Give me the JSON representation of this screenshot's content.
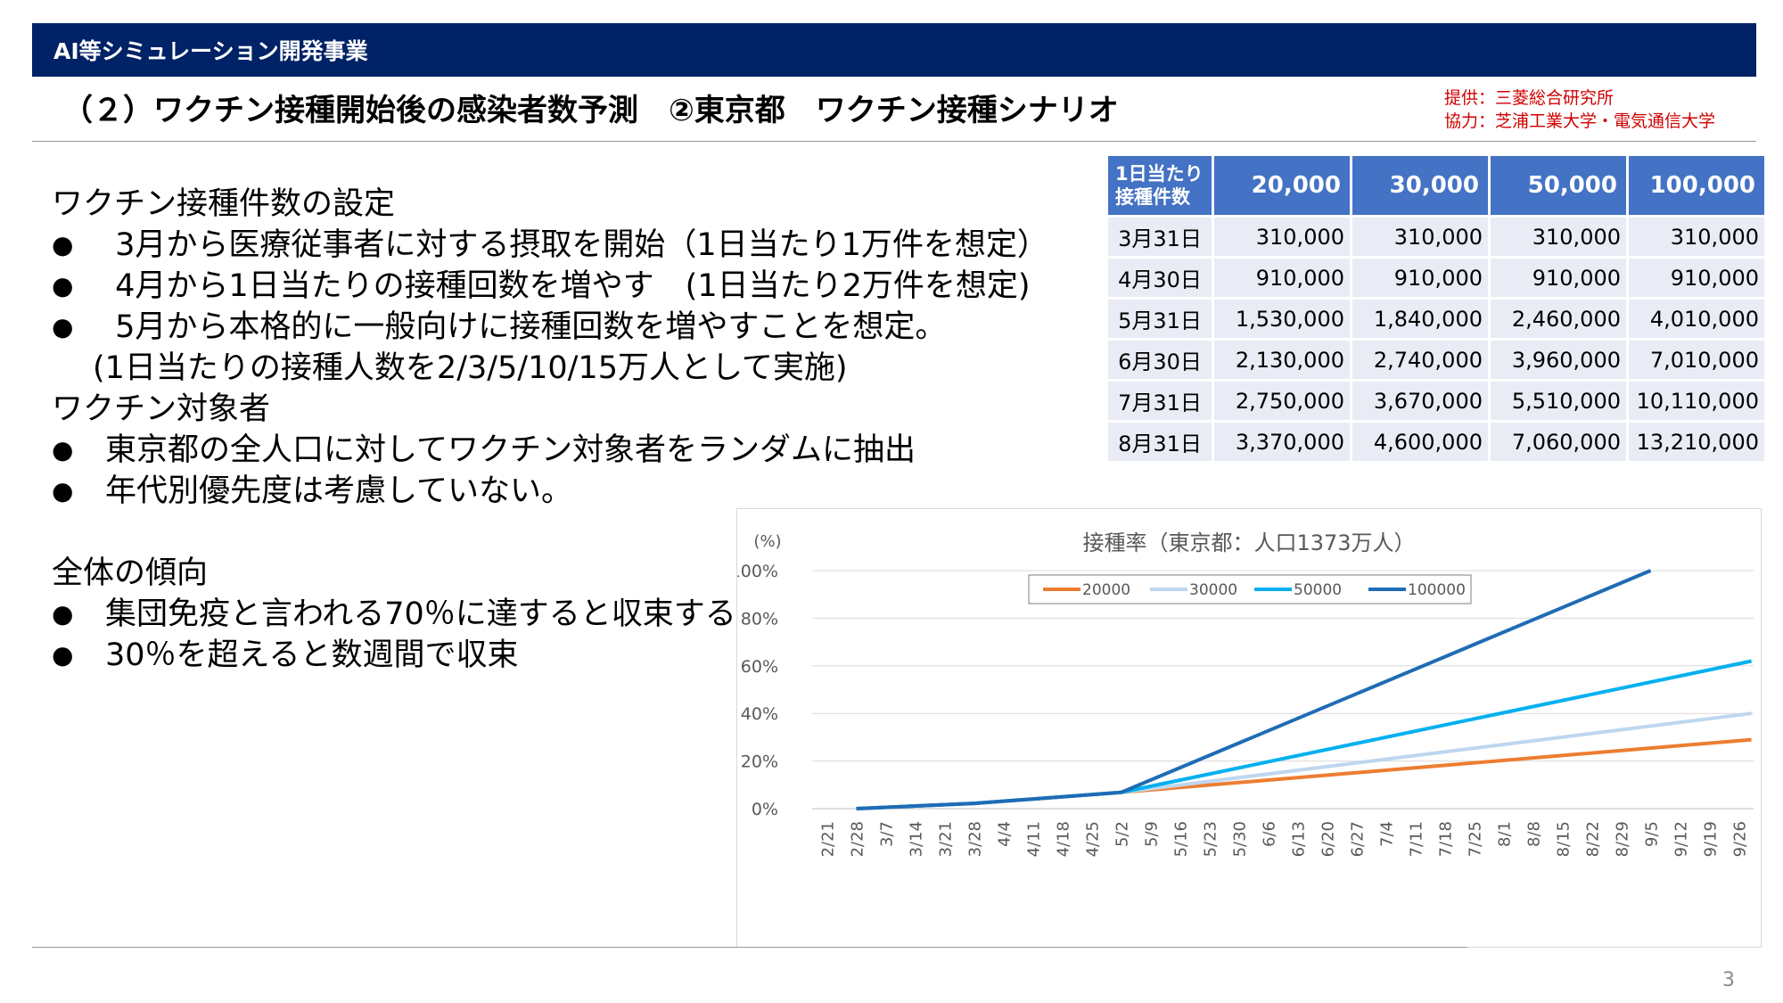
{
  "header": {
    "banner": "AI等シミュレーション開発事業",
    "title": "（２）ワクチン接種開始後の感染者数予測　②東京都　ワクチン接種シナリオ",
    "credit_provider": "提供：三菱総合研究所",
    "credit_cooperation": "協力：芝浦工業大学・電気通信大学"
  },
  "text": {
    "lines": [
      {
        "bullet": "",
        "text": "ワクチン接種件数の設定"
      },
      {
        "bullet": "●",
        "text": " 3月から医療従事者に対する摂取を開始（1日当たり1万件を想定）"
      },
      {
        "bullet": "●",
        "text": " 4月から1日当たりの接種回数を増やす　(1日当たり2万件を想定)"
      },
      {
        "bullet": "●",
        "text": " 5月から本格的に一般向けに接種回数を増やすことを想定。"
      },
      {
        "bullet": "",
        "text": "(1日当たりの接種人数を2/3/5/10/15万人として実施)"
      },
      {
        "bullet": "",
        "text": "ワクチン対象者"
      },
      {
        "bullet": "●",
        "text": "東京都の全人口に対してワクチン対象者をランダムに抽出"
      },
      {
        "bullet": "●",
        "text": "年代別優先度は考慮していない。"
      },
      {
        "bullet": "",
        "text": ""
      },
      {
        "bullet": "",
        "text": "全体の傾向"
      },
      {
        "bullet": "●",
        "text": "集団免疫と言われる70％に達すると収束する。"
      },
      {
        "bullet": "●",
        "text": "30％を超えると数週間で収束"
      }
    ]
  },
  "table": {
    "corner_line1": "1日当たり",
    "corner_line2": "接種件数",
    "headers": [
      "20,000",
      "30,000",
      "50,000",
      "100,000"
    ],
    "rows": [
      {
        "date": "3月31日",
        "values": [
          "310,000",
          "310,000",
          "310,000",
          "310,000"
        ]
      },
      {
        "date": "4月30日",
        "values": [
          "910,000",
          "910,000",
          "910,000",
          "910,000"
        ]
      },
      {
        "date": "5月31日",
        "values": [
          "1,530,000",
          "1,840,000",
          "2,460,000",
          "4,010,000"
        ]
      },
      {
        "date": "6月30日",
        "values": [
          "2,130,000",
          "2,740,000",
          "3,960,000",
          "7,010,000"
        ]
      },
      {
        "date": "7月31日",
        "values": [
          "2,750,000",
          "3,670,000",
          "5,510,000",
          "10,110,000"
        ]
      },
      {
        "date": "8月31日",
        "values": [
          "3,370,000",
          "4,600,000",
          "7,060,000",
          "13,210,000"
        ]
      }
    ]
  },
  "chart_data": {
    "type": "line",
    "title": "接種率（東京都：人口1373万人）",
    "ylabel": "(%)",
    "xlabel": "",
    "ylim": [
      0,
      100
    ],
    "yticks": [
      "0%",
      "20%",
      "40%",
      "60%",
      "80%",
      "100%"
    ],
    "y_tick_values": [
      0,
      20,
      40,
      60,
      80,
      100
    ],
    "grid": true,
    "legend": "top",
    "x": [
      "2/21",
      "2/28",
      "3/7",
      "3/14",
      "3/21",
      "3/28",
      "4/4",
      "4/11",
      "4/18",
      "4/25",
      "5/2",
      "5/9",
      "5/16",
      "5/23",
      "5/30",
      "6/6",
      "6/13",
      "6/20",
      "6/27",
      "7/4",
      "7/11",
      "7/18",
      "7/25",
      "8/1",
      "8/8",
      "8/15",
      "8/22",
      "8/29",
      "9/5",
      "9/12",
      "9/19",
      "9/26"
    ],
    "series": [
      {
        "name": "20000",
        "color": "#ed7d31",
        "points": [
          [
            "2/28",
            0
          ],
          [
            "3/28",
            2.2
          ],
          [
            "5/2",
            6.8
          ],
          [
            "9/29",
            29
          ]
        ]
      },
      {
        "name": "30000",
        "color": "#bdd7ee",
        "points": [
          [
            "2/28",
            0
          ],
          [
            "3/28",
            2.2
          ],
          [
            "5/2",
            6.8
          ],
          [
            "9/29",
            40
          ]
        ]
      },
      {
        "name": "50000",
        "color": "#00b0f0",
        "points": [
          [
            "2/28",
            0
          ],
          [
            "3/28",
            2.2
          ],
          [
            "5/2",
            6.8
          ],
          [
            "9/29",
            62
          ]
        ]
      },
      {
        "name": "100000",
        "color": "#1f6cb5",
        "points": [
          [
            "2/28",
            0
          ],
          [
            "3/28",
            2.2
          ],
          [
            "5/2",
            6.8
          ],
          [
            "9/5",
            100
          ]
        ]
      }
    ]
  },
  "page": {
    "number": "3"
  }
}
